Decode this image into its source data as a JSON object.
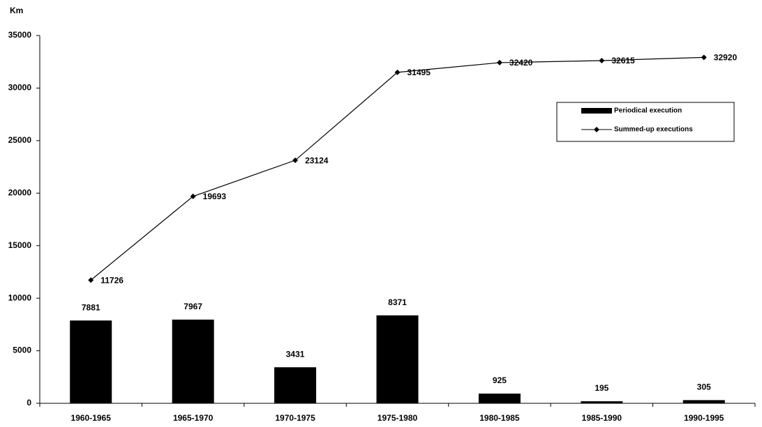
{
  "chart_data": {
    "type": "bar",
    "ylabel": "Km",
    "categories": [
      "1960-1965",
      "1965-1970",
      "1970-1975",
      "1975-1980",
      "1980-1985",
      "1985-1990",
      "1990-1995"
    ],
    "series": [
      {
        "name": "Periodical execution",
        "type": "bar",
        "color": "#000000",
        "values": [
          7881,
          7967,
          3431,
          8371,
          925,
          195,
          305
        ]
      },
      {
        "name": "Summed-up executions",
        "type": "line",
        "color": "#000000",
        "values": [
          11726,
          19693,
          23124,
          31495,
          32420,
          32615,
          32920
        ]
      }
    ],
    "ylim": [
      0,
      35000
    ],
    "yticks": [
      0,
      5000,
      10000,
      15000,
      20000,
      25000,
      30000,
      35000
    ],
    "grid": false,
    "legend": "upper right"
  }
}
